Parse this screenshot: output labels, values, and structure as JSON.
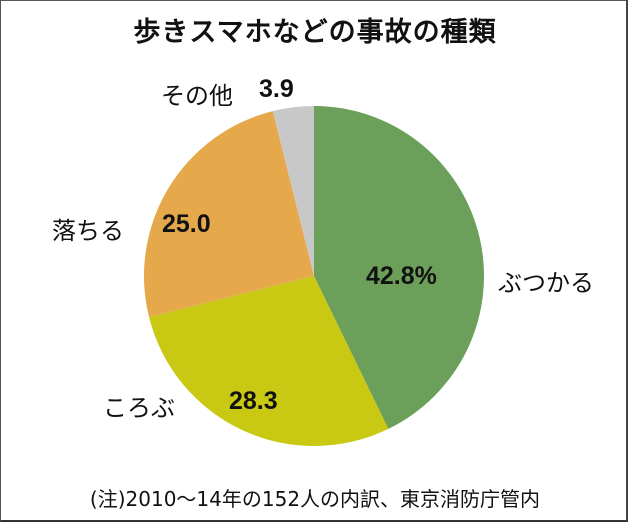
{
  "chart_data": {
    "type": "pie",
    "title": "歩きスマホなどの事故の種類",
    "unit": "%",
    "categories": [
      "ぶつかる",
      "ころぶ",
      "落ちる",
      "その他"
    ],
    "values": [
      42.8,
      28.3,
      25.0,
      3.9
    ],
    "value_labels": [
      "42.8%",
      "28.3",
      "25.0",
      "3.9"
    ],
    "colors": [
      "#6c9f5a",
      "#c9c914",
      "#e5a84a",
      "#c8c8c8"
    ],
    "start_angle": "12 o'clock, clockwise",
    "legend": "none (labels adjacent to slices)",
    "note": "(注)2010〜14年の152人の内訳、東京消防庁管内"
  },
  "title": "歩きスマホなどの事故の種類",
  "labels": {
    "butsukaru": "ぶつかる",
    "korobu": "ころぶ",
    "ochiru": "落ちる",
    "sonota": "その他"
  },
  "values": {
    "butsukaru": "42.8%",
    "korobu": "28.3",
    "ochiru": "25.0",
    "sonota": "3.9"
  },
  "note": "(注)2010〜14年の152人の内訳、東京消防庁管内"
}
